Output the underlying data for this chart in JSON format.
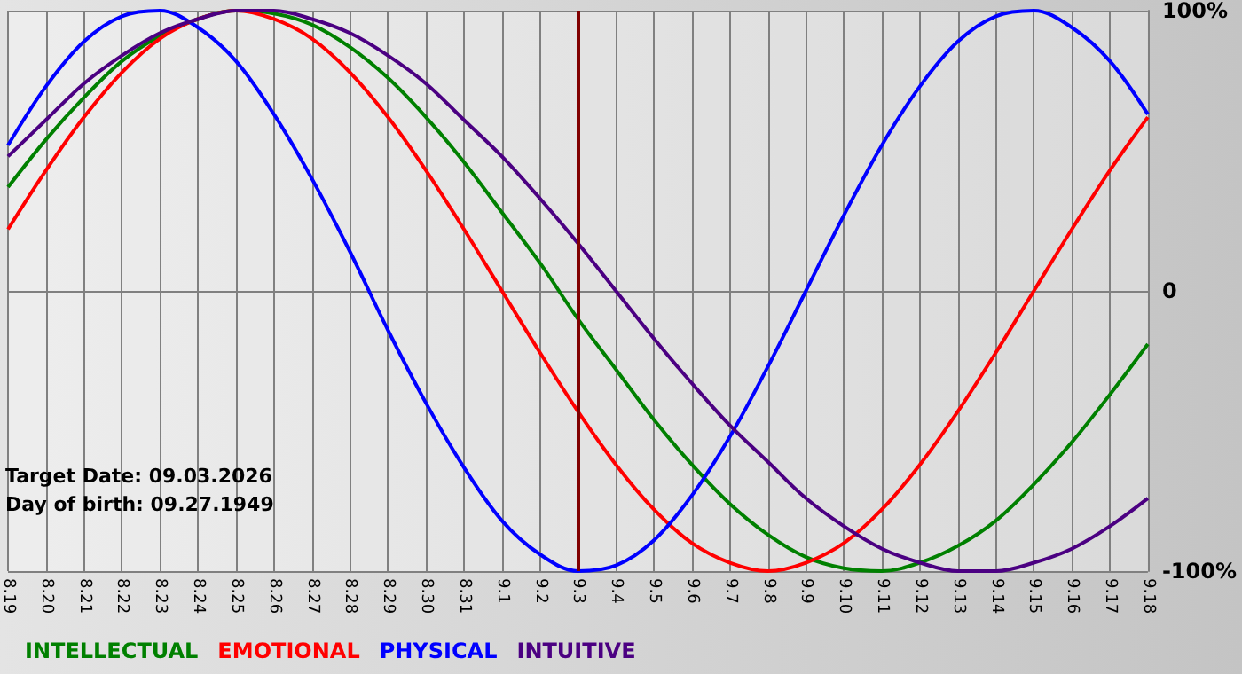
{
  "chart_data": {
    "type": "line",
    "categories": [
      "8.19",
      "8.20",
      "8.21",
      "8.22",
      "8.23",
      "8.24",
      "8.25",
      "8.26",
      "8.27",
      "8.28",
      "8.29",
      "8.30",
      "8.31",
      "9.1",
      "9.2",
      "9.3",
      "9.4",
      "9.5",
      "9.6",
      "9.7",
      "9.8",
      "9.9",
      "9.10",
      "9.11",
      "9.12",
      "9.13",
      "9.14",
      "9.15",
      "9.16",
      "9.17",
      "9.18"
    ],
    "series": [
      {
        "name": "INTELLECTUAL",
        "color": "#008000",
        "values": [
          37,
          54,
          69,
          82,
          91,
          97,
          100,
          99,
          95,
          87,
          76,
          62,
          46,
          28,
          10,
          -10,
          -28,
          -46,
          -62,
          -76,
          -87,
          -95,
          -99,
          -100,
          -97,
          -91,
          -82,
          -69,
          -54,
          -37,
          -19
        ]
      },
      {
        "name": "EMOTIONAL",
        "color": "#ff0000",
        "values": [
          22,
          43,
          62,
          78,
          90,
          97,
          100,
          97,
          90,
          78,
          62,
          43,
          22,
          0,
          -22,
          -43,
          -62,
          -78,
          -90,
          -97,
          -100,
          -97,
          -90,
          -78,
          -62,
          -43,
          -22,
          0,
          22,
          43,
          62
        ]
      },
      {
        "name": "PHYSICAL",
        "color": "#0000ff",
        "values": [
          52,
          73,
          89,
          98,
          100,
          94,
          82,
          63,
          40,
          14,
          -14,
          -40,
          -63,
          -82,
          -94,
          -100,
          -98,
          -89,
          -73,
          -52,
          -27,
          0,
          27,
          52,
          73,
          89,
          98,
          100,
          94,
          82,
          63
        ]
      },
      {
        "name": "INTUITIVE",
        "color": "#4b0082",
        "values": [
          48,
          61,
          74,
          84,
          92,
          97,
          100,
          100,
          97,
          92,
          84,
          74,
          61,
          48,
          33,
          17,
          0,
          -17,
          -33,
          -48,
          -61,
          -74,
          -84,
          -92,
          -97,
          -100,
          -100,
          -97,
          -92,
          -84,
          -74
        ]
      }
    ],
    "ylim": [
      -100,
      100
    ],
    "yticks": [
      {
        "value": -100,
        "label": "-100%"
      },
      0,
      {
        "value": 100,
        "label": "100%"
      }
    ],
    "ref_lines": [
      {
        "axis": "x",
        "value": "9.3",
        "color": "#800000"
      }
    ],
    "annotations": [
      "Target Date: 09.03.2026",
      "Day of birth: 09.27.1949"
    ],
    "grid": true,
    "legend": "bottom left",
    "marker": "none",
    "line_style": "solid"
  }
}
